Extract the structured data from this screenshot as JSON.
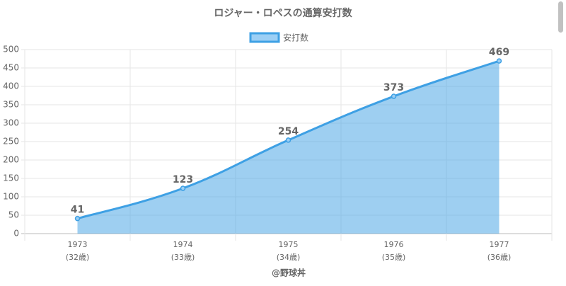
{
  "chart_data": {
    "type": "area",
    "title": "ロジャー・ロペスの通算安打数",
    "categories": [
      [
        "1973",
        "(32歳)"
      ],
      [
        "1974",
        "(33歳)"
      ],
      [
        "1975",
        "(34歳)"
      ],
      [
        "1976",
        "(35歳)"
      ],
      [
        "1977",
        "(36歳)"
      ]
    ],
    "series": [
      {
        "name": "安打数",
        "color": "#3ea0e4",
        "values": [
          41,
          123,
          254,
          373,
          469
        ]
      }
    ],
    "ylim": [
      0,
      500
    ],
    "yticks": [
      0,
      50,
      100,
      150,
      200,
      250,
      300,
      350,
      400,
      450,
      500
    ],
    "grid": true,
    "legend": "top",
    "credit": "@野球丼"
  }
}
